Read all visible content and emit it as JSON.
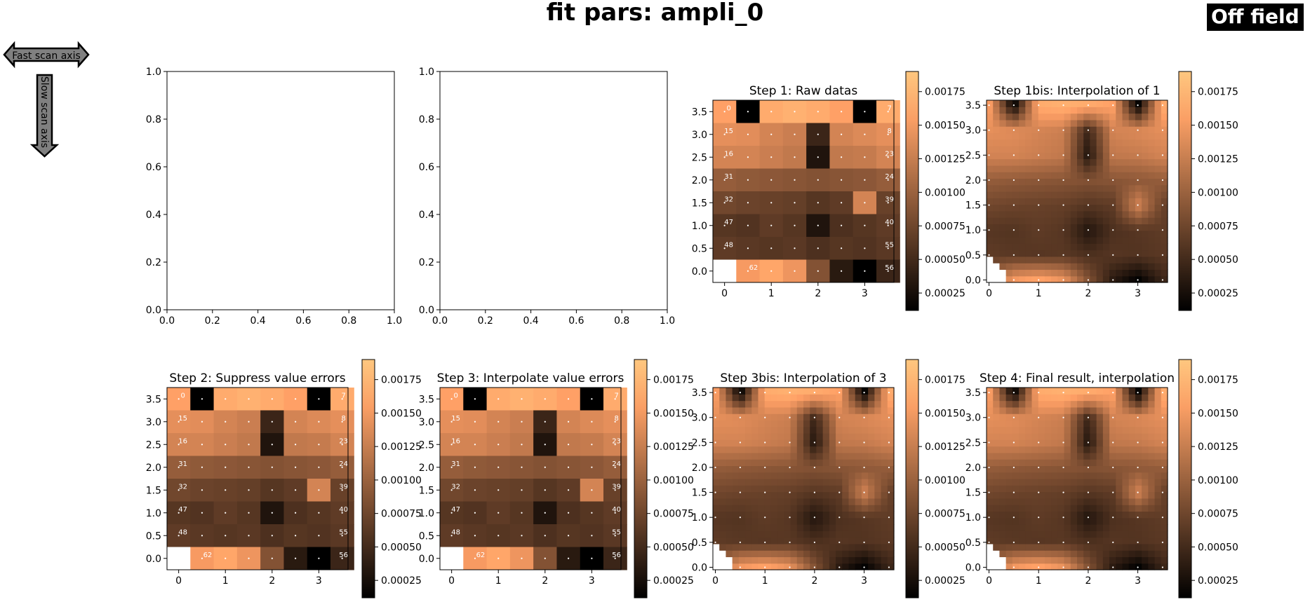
{
  "figure": {
    "title": "fit pars: ampli_0",
    "badge": "Off field",
    "fast_axis_label": "Fast scan axis",
    "slow_axis_label": "Slow scan axis"
  },
  "colormap": "copper",
  "colorbar": {
    "ticks": [
      0.00025,
      0.0005,
      0.00075,
      0.001,
      0.00125,
      0.0015,
      0.00175
    ],
    "tick_labels": [
      "0.00025",
      "0.00050",
      "0.00075",
      "0.00100",
      "0.00125",
      "0.00150",
      "0.00175"
    ],
    "range": [
      0.00012,
      0.0019
    ]
  },
  "chart_data": [
    {
      "type": "line",
      "title": "",
      "xlim": [
        0,
        1
      ],
      "ylim": [
        0,
        1
      ],
      "xticks": [
        "0.0",
        "0.2",
        "0.4",
        "0.6",
        "0.8",
        "1.0"
      ],
      "yticks": [
        "0.0",
        "0.2",
        "0.4",
        "0.6",
        "0.8",
        "1.0"
      ],
      "series": []
    },
    {
      "type": "line",
      "title": "",
      "xlim": [
        0,
        1
      ],
      "ylim": [
        0,
        1
      ],
      "xticks": [
        "0.0",
        "0.2",
        "0.4",
        "0.6",
        "0.8",
        "1.0"
      ],
      "yticks": [
        "0.0",
        "0.2",
        "0.4",
        "0.6",
        "0.8",
        "1.0"
      ],
      "series": []
    },
    {
      "type": "heatmap",
      "title": "Step 1: Raw datas",
      "xlim": [
        -0.25,
        3.625
      ],
      "ylim": [
        -0.25,
        3.75
      ],
      "xticks": [
        "0",
        "1",
        "2",
        "3"
      ],
      "yticks": [
        "0.0",
        "0.5",
        "1.0",
        "1.5",
        "2.0",
        "2.5",
        "3.0",
        "3.5"
      ],
      "point_labels": [
        "0",
        "15",
        "16",
        "31",
        "32",
        "47",
        "48",
        "62",
        "7",
        "8",
        "23",
        "24",
        "39",
        "40",
        "55",
        "56"
      ]
    },
    {
      "type": "heatmap",
      "title": "Step 1bis: Interpolation of 1",
      "xlim": [
        -0.05,
        3.6
      ],
      "ylim": [
        -0.05,
        3.6
      ],
      "xticks": [
        "0",
        "1",
        "2",
        "3"
      ],
      "yticks": [
        "0.0",
        "0.5",
        "1.0",
        "1.5",
        "2.0",
        "2.5",
        "3.0",
        "3.5"
      ]
    },
    {
      "type": "heatmap",
      "title": "Step 2: Suppress value errors",
      "xlim": [
        -0.25,
        3.625
      ],
      "ylim": [
        -0.25,
        3.75
      ],
      "xticks": [
        "0",
        "1",
        "2",
        "3"
      ],
      "yticks": [
        "0.0",
        "0.5",
        "1.0",
        "1.5",
        "2.0",
        "2.5",
        "3.0",
        "3.5"
      ],
      "point_labels": [
        "0",
        "15",
        "16",
        "31",
        "32",
        "47",
        "48",
        "62",
        "7",
        "8",
        "23",
        "24",
        "39",
        "40",
        "55",
        "56"
      ]
    },
    {
      "type": "heatmap",
      "title": "Step 3: Interpolate value errors",
      "xlim": [
        -0.25,
        3.625
      ],
      "ylim": [
        -0.25,
        3.75
      ],
      "xticks": [
        "0",
        "1",
        "2",
        "3"
      ],
      "yticks": [
        "0.0",
        "0.5",
        "1.0",
        "1.5",
        "2.0",
        "2.5",
        "3.0",
        "3.5"
      ],
      "point_labels": [
        "0",
        "15",
        "16",
        "31",
        "32",
        "47",
        "48",
        "62",
        "7",
        "8",
        "23",
        "24",
        "39",
        "40",
        "55",
        "56"
      ]
    },
    {
      "type": "heatmap",
      "title": "Step 3bis: Interpolation of 3",
      "xlim": [
        -0.05,
        3.6
      ],
      "ylim": [
        -0.05,
        3.6
      ],
      "xticks": [
        "0",
        "1",
        "2",
        "3"
      ],
      "yticks": [
        "0.0",
        "0.5",
        "1.0",
        "1.5",
        "2.0",
        "2.5",
        "3.0",
        "3.5"
      ]
    },
    {
      "type": "heatmap",
      "title": "Step 4: Final result, interpolation",
      "xlim": [
        -0.05,
        3.6
      ],
      "ylim": [
        -0.05,
        3.6
      ],
      "xticks": [
        "0",
        "1",
        "2",
        "3"
      ],
      "yticks": [
        "0.0",
        "0.5",
        "1.0",
        "1.5",
        "2.0",
        "2.5",
        "3.0",
        "3.5"
      ]
    }
  ],
  "grid_values": [
    [
      0.00155,
      0.00012,
      0.00165,
      0.0017,
      0.00165,
      0.00155,
      0.00012,
      0.00165
    ],
    [
      0.0014,
      0.00138,
      0.0013,
      0.00125,
      0.00045,
      0.0013,
      0.00135,
      0.0014
    ],
    [
      0.0013,
      0.0013,
      0.00125,
      0.0012,
      0.0003,
      0.0012,
      0.00122,
      0.0013
    ],
    [
      0.00095,
      0.00092,
      0.0009,
      0.00088,
      0.00085,
      0.00088,
      0.0009,
      0.00095
    ],
    [
      0.00075,
      0.00072,
      0.0007,
      0.00068,
      0.0006,
      0.00065,
      0.0013,
      0.0007
    ],
    [
      0.0006,
      0.00058,
      0.00065,
      0.0006,
      0.0003,
      0.00055,
      0.0006,
      0.00065
    ],
    [
      0.00065,
      0.00062,
      0.0006,
      0.00062,
      0.00055,
      0.0006,
      0.00058,
      0.00062
    ],
    [
      null,
      0.0015,
      0.0016,
      0.00145,
      0.00085,
      0.00035,
      0.00012,
      0.00045
    ]
  ],
  "grid_values_fixed": [
    [
      0.00155,
      0.00012,
      0.00165,
      0.0017,
      0.00165,
      0.00155,
      0.00012,
      0.00165
    ],
    [
      0.0014,
      0.00138,
      0.0013,
      0.00125,
      0.00045,
      0.0013,
      0.00135,
      0.0014
    ],
    [
      0.0013,
      0.0013,
      0.00125,
      0.0012,
      0.0003,
      0.0012,
      0.00122,
      0.0013
    ],
    [
      0.00095,
      0.00092,
      0.0009,
      0.00088,
      0.00085,
      0.00088,
      0.0009,
      0.00095
    ],
    [
      0.00075,
      0.00072,
      0.0007,
      0.00068,
      0.0006,
      0.00065,
      0.0013,
      0.0007
    ],
    [
      0.0006,
      0.00058,
      0.00065,
      0.0006,
      0.0003,
      0.00055,
      0.0006,
      0.00065
    ],
    [
      0.00065,
      0.00062,
      0.0006,
      0.00062,
      0.00055,
      0.0006,
      0.00058,
      0.00062
    ],
    [
      null,
      0.0015,
      0.0016,
      0.00145,
      0.00085,
      0.00035,
      0.00012,
      0.00045
    ]
  ]
}
